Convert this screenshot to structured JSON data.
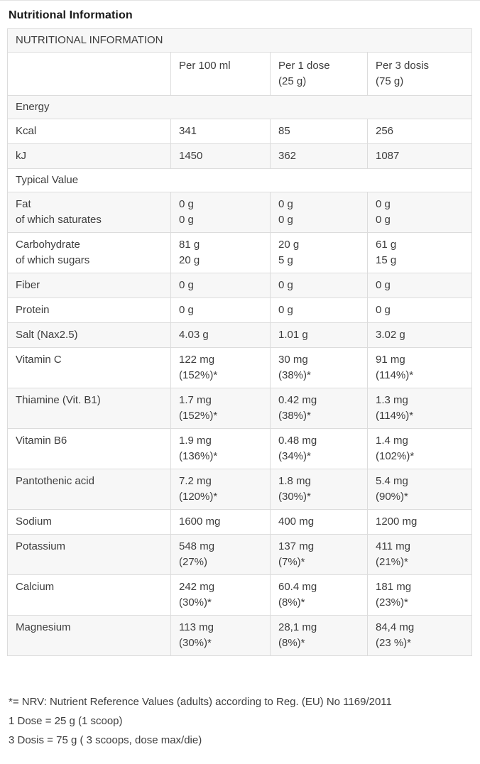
{
  "page": {
    "title": "Nutritional Information"
  },
  "table": {
    "title": "NUTRITIONAL INFORMATION",
    "columns": [
      "",
      "Per 100 ml",
      "Per 1 dose\n(25 g)",
      "Per 3 dosis\n(75 g)"
    ],
    "rows": [
      {
        "type": "section",
        "label": "Energy"
      },
      {
        "type": "data",
        "label": "Kcal",
        "values": [
          "341",
          "85",
          "256"
        ]
      },
      {
        "type": "data",
        "label": "kJ",
        "values": [
          "1450",
          "362",
          "1087"
        ]
      },
      {
        "type": "section",
        "label": "Typical Value"
      },
      {
        "type": "data",
        "label": "Fat\nof which saturates",
        "values": [
          "0 g\n0 g",
          "0 g\n0 g",
          "0 g\n0 g"
        ]
      },
      {
        "type": "data",
        "label": "Carbohydrate\nof which sugars",
        "values": [
          "81 g\n20 g",
          "20 g\n5 g",
          "61 g\n15 g"
        ]
      },
      {
        "type": "data",
        "label": "Fiber",
        "values": [
          "0 g",
          "0 g",
          "0 g"
        ]
      },
      {
        "type": "data",
        "label": "Protein",
        "values": [
          "0 g",
          "0 g",
          "0 g"
        ]
      },
      {
        "type": "data",
        "label": "Salt (Nax2.5)",
        "values": [
          "4.03 g",
          "1.01 g",
          "3.02 g"
        ]
      },
      {
        "type": "data",
        "label": "Vitamin C",
        "values": [
          "122 mg\n(152%)*",
          "30 mg\n(38%)*",
          "91 mg\n(114%)*"
        ]
      },
      {
        "type": "data",
        "label": "Thiamine (Vit. B1)",
        "values": [
          "1.7 mg\n(152%)*",
          "0.42 mg\n(38%)*",
          "1.3 mg\n(114%)*"
        ]
      },
      {
        "type": "data",
        "label": "Vitamin B6",
        "values": [
          "1.9 mg\n(136%)*",
          "0.48 mg\n(34%)*",
          "1.4 mg\n(102%)*"
        ]
      },
      {
        "type": "data",
        "label": "Pantothenic acid",
        "values": [
          "7.2 mg\n(120%)*",
          "1.8 mg\n(30%)*",
          "5.4 mg\n(90%)*"
        ]
      },
      {
        "type": "data",
        "label": "Sodium",
        "values": [
          "1600 mg",
          "400 mg",
          "1200 mg"
        ]
      },
      {
        "type": "data",
        "label": "Potassium",
        "values": [
          "548 mg\n(27%)",
          "137 mg\n(7%)*",
          "411 mg\n(21%)*"
        ]
      },
      {
        "type": "data",
        "label": "Calcium",
        "values": [
          "242 mg\n(30%)*",
          "60.4 mg\n(8%)*",
          "181 mg\n(23%)*"
        ]
      },
      {
        "type": "data",
        "label": "Magnesium",
        "values": [
          "113 mg\n(30%)*",
          "28,1 mg\n(8%)*",
          "84,4 mg\n(23 %)*"
        ]
      }
    ]
  },
  "footnotes": [
    "*= NRV: Nutrient Reference Values (adults) according to Reg. (EU) No 1169/2011",
    "1 Dose = 25 g (1 scoop)",
    "3 Dosis = 75 g ( 3 scoops, dose max/die)"
  ],
  "colors": {
    "background": "#ffffff",
    "row_stripe": "#f7f7f7",
    "border": "#dcdcdc",
    "text": "#3d3d3d",
    "title_text": "#1a1a1a"
  }
}
